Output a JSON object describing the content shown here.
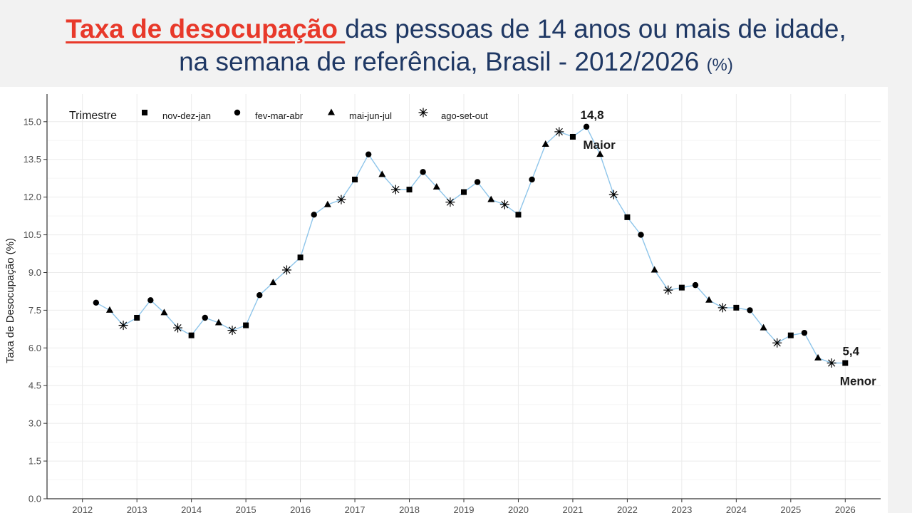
{
  "title": {
    "highlight": "Taxa de desocupação ",
    "line1_rest": "das pessoas de 14 anos ou mais de idade,",
    "line2": "na semana de referência, Brasil - 2012/2026 ",
    "unit": "(%)"
  },
  "colors": {
    "title": "#1f3864",
    "highlight": "#e8392a",
    "line": "#8ec5ea",
    "marker": "#000000"
  },
  "chart_data": {
    "type": "line",
    "ylabel": "Taxa de Desocupação (%)",
    "xlabel": "",
    "ylim": [
      0,
      16
    ],
    "y_ticks": [
      "0.0",
      "1.5",
      "3.0",
      "4.5",
      "6.0",
      "7.5",
      "9.0",
      "10.5",
      "12.0",
      "13.5",
      "15.0"
    ],
    "x_ticks": [
      "2012",
      "2013",
      "2014",
      "2015",
      "2016",
      "2017",
      "2018",
      "2019",
      "2020",
      "2021",
      "2022",
      "2023",
      "2024",
      "2025",
      "2026"
    ],
    "grid": true,
    "legend": {
      "title": "Trimestre",
      "position": "top-left",
      "entries": [
        {
          "label": "nov-dez-jan",
          "marker": "square"
        },
        {
          "label": "fev-mar-abr",
          "marker": "circle"
        },
        {
          "label": "mai-jun-jul",
          "marker": "triangle"
        },
        {
          "label": "ago-set-out",
          "marker": "asterisk"
        }
      ]
    },
    "points": [
      {
        "x": 2012.25,
        "y": 7.8,
        "q": "fev-mar-abr"
      },
      {
        "x": 2012.5,
        "y": 7.5,
        "q": "mai-jun-jul"
      },
      {
        "x": 2012.75,
        "y": 6.9,
        "q": "ago-set-out"
      },
      {
        "x": 2013.0,
        "y": 7.2,
        "q": "nov-dez-jan"
      },
      {
        "x": 2013.25,
        "y": 7.9,
        "q": "fev-mar-abr"
      },
      {
        "x": 2013.5,
        "y": 7.4,
        "q": "mai-jun-jul"
      },
      {
        "x": 2013.75,
        "y": 6.8,
        "q": "ago-set-out"
      },
      {
        "x": 2014.0,
        "y": 6.5,
        "q": "nov-dez-jan"
      },
      {
        "x": 2014.25,
        "y": 7.2,
        "q": "fev-mar-abr"
      },
      {
        "x": 2014.5,
        "y": 7.0,
        "q": "mai-jun-jul"
      },
      {
        "x": 2014.75,
        "y": 6.7,
        "q": "ago-set-out"
      },
      {
        "x": 2015.0,
        "y": 6.9,
        "q": "nov-dez-jan"
      },
      {
        "x": 2015.25,
        "y": 8.1,
        "q": "fev-mar-abr"
      },
      {
        "x": 2015.5,
        "y": 8.6,
        "q": "mai-jun-jul"
      },
      {
        "x": 2015.75,
        "y": 9.1,
        "q": "ago-set-out"
      },
      {
        "x": 2016.0,
        "y": 9.6,
        "q": "nov-dez-jan"
      },
      {
        "x": 2016.25,
        "y": 11.3,
        "q": "fev-mar-abr"
      },
      {
        "x": 2016.5,
        "y": 11.7,
        "q": "mai-jun-jul"
      },
      {
        "x": 2016.75,
        "y": 11.9,
        "q": "ago-set-out"
      },
      {
        "x": 2017.0,
        "y": 12.7,
        "q": "nov-dez-jan"
      },
      {
        "x": 2017.25,
        "y": 13.7,
        "q": "fev-mar-abr"
      },
      {
        "x": 2017.5,
        "y": 12.9,
        "q": "mai-jun-jul"
      },
      {
        "x": 2017.75,
        "y": 12.3,
        "q": "ago-set-out"
      },
      {
        "x": 2018.0,
        "y": 12.3,
        "q": "nov-dez-jan"
      },
      {
        "x": 2018.25,
        "y": 13.0,
        "q": "fev-mar-abr"
      },
      {
        "x": 2018.5,
        "y": 12.4,
        "q": "mai-jun-jul"
      },
      {
        "x": 2018.75,
        "y": 11.8,
        "q": "ago-set-out"
      },
      {
        "x": 2019.0,
        "y": 12.2,
        "q": "nov-dez-jan"
      },
      {
        "x": 2019.25,
        "y": 12.6,
        "q": "fev-mar-abr"
      },
      {
        "x": 2019.5,
        "y": 11.9,
        "q": "mai-jun-jul"
      },
      {
        "x": 2019.75,
        "y": 11.7,
        "q": "ago-set-out"
      },
      {
        "x": 2020.0,
        "y": 11.3,
        "q": "nov-dez-jan"
      },
      {
        "x": 2020.25,
        "y": 12.7,
        "q": "fev-mar-abr"
      },
      {
        "x": 2020.5,
        "y": 14.1,
        "q": "mai-jun-jul"
      },
      {
        "x": 2020.75,
        "y": 14.6,
        "q": "ago-set-out"
      },
      {
        "x": 2021.0,
        "y": 14.4,
        "q": "nov-dez-jan"
      },
      {
        "x": 2021.25,
        "y": 14.8,
        "q": "fev-mar-abr"
      },
      {
        "x": 2021.5,
        "y": 13.7,
        "q": "mai-jun-jul"
      },
      {
        "x": 2021.75,
        "y": 12.1,
        "q": "ago-set-out"
      },
      {
        "x": 2022.0,
        "y": 11.2,
        "q": "nov-dez-jan"
      },
      {
        "x": 2022.25,
        "y": 10.5,
        "q": "fev-mar-abr"
      },
      {
        "x": 2022.5,
        "y": 9.1,
        "q": "mai-jun-jul"
      },
      {
        "x": 2022.75,
        "y": 8.3,
        "q": "ago-set-out"
      },
      {
        "x": 2023.0,
        "y": 8.4,
        "q": "nov-dez-jan"
      },
      {
        "x": 2023.25,
        "y": 8.5,
        "q": "fev-mar-abr"
      },
      {
        "x": 2023.5,
        "y": 7.9,
        "q": "mai-jun-jul"
      },
      {
        "x": 2023.75,
        "y": 7.6,
        "q": "ago-set-out"
      },
      {
        "x": 2024.0,
        "y": 7.6,
        "q": "nov-dez-jan"
      },
      {
        "x": 2024.25,
        "y": 7.5,
        "q": "fev-mar-abr"
      },
      {
        "x": 2024.5,
        "y": 6.8,
        "q": "mai-jun-jul"
      },
      {
        "x": 2024.75,
        "y": 6.2,
        "q": "ago-set-out"
      },
      {
        "x": 2025.0,
        "y": 6.5,
        "q": "nov-dez-jan"
      },
      {
        "x": 2025.25,
        "y": 6.6,
        "q": "fev-mar-abr"
      },
      {
        "x": 2025.5,
        "y": 5.6,
        "q": "mai-jun-jul"
      },
      {
        "x": 2025.75,
        "y": 5.4,
        "q": "ago-set-out"
      },
      {
        "x": 2026.0,
        "y": 5.4,
        "q": "nov-dez-jan"
      }
    ],
    "annotations": [
      {
        "x": 2021.25,
        "y": 14.8,
        "value_label": "14,8",
        "text": "Maior"
      },
      {
        "x": 2026.0,
        "y": 5.4,
        "value_label": "5,4",
        "text": "Menor"
      }
    ]
  }
}
